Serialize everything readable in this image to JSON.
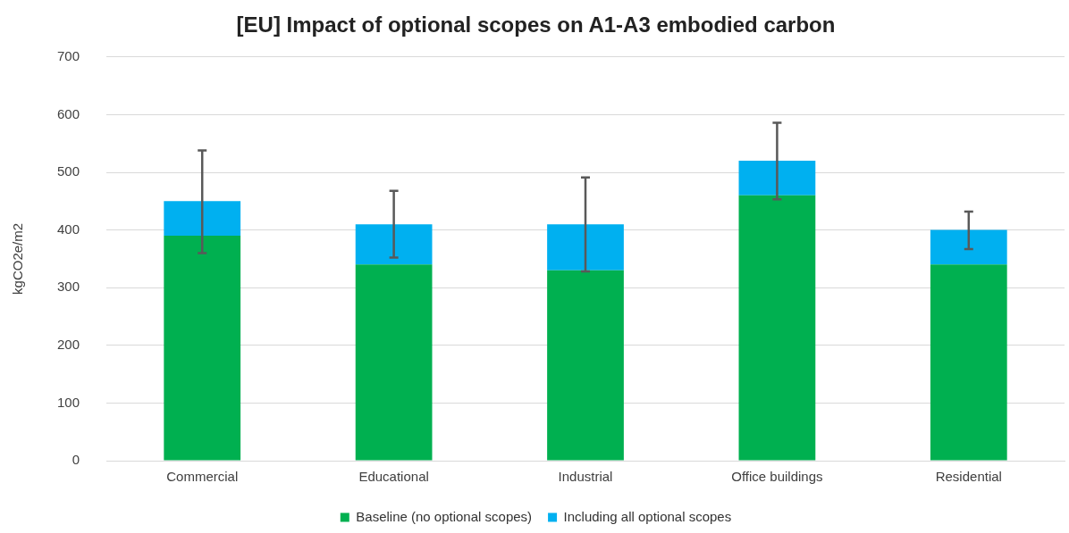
{
  "chart_data": {
    "type": "bar",
    "title": "[EU] Impact of optional scopes on A1-A3 embodied carbon",
    "ylabel": "kgCO2e/m2",
    "categories": [
      "Commercial",
      "Educational",
      "Industrial",
      "Office buildings",
      "Residential"
    ],
    "stacked": true,
    "series": [
      {
        "name": "Baseline (no optional scopes)",
        "color": "#00b050",
        "values": [
          390,
          340,
          330,
          460,
          340
        ]
      },
      {
        "name": "Including all optional scopes",
        "color": "#00b0f0",
        "values": [
          60,
          70,
          80,
          60,
          60
        ],
        "errors": [
          [
            360,
            538
          ],
          [
            352,
            468
          ],
          [
            328,
            491
          ],
          [
            453,
            586
          ],
          [
            367,
            432
          ]
        ]
      }
    ],
    "ylim": [
      0,
      700
    ],
    "yticks": [
      0,
      100,
      200,
      300,
      400,
      500,
      600,
      700
    ],
    "grid": "y",
    "legend": "bottom"
  }
}
